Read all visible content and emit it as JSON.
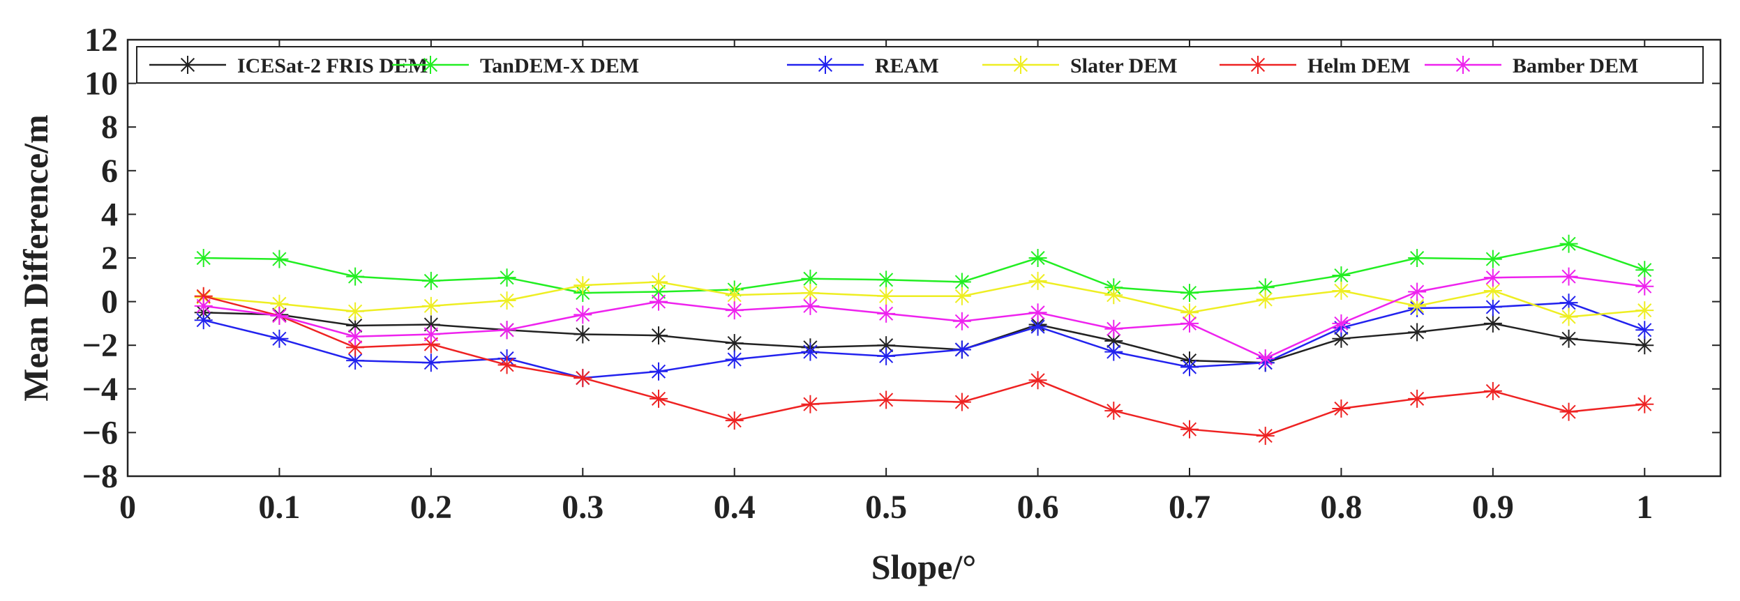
{
  "chart_data": {
    "type": "line",
    "title": "",
    "xlabel": "Slope/°",
    "ylabel": "Mean Difference/m",
    "xlim": [
      0,
      1.05
    ],
    "ylim": [
      -8,
      12
    ],
    "xticks": [
      0,
      0.1,
      0.2,
      0.3,
      0.4,
      0.5,
      0.6,
      0.7,
      0.8,
      0.9,
      1
    ],
    "xtick_labels": [
      "0",
      "0.1",
      "0.2",
      "0.3",
      "0.4",
      "0.5",
      "0.6",
      "0.7",
      "0.8",
      "0.9",
      "1"
    ],
    "yticks": [
      -8,
      -6,
      -4,
      -2,
      0,
      2,
      4,
      6,
      8,
      10,
      12
    ],
    "ytick_labels": [
      "−8",
      "−6",
      "−4",
      "−2",
      "0",
      "2",
      "4",
      "6",
      "8",
      "10",
      "12"
    ],
    "grid": false,
    "legend_position": "top",
    "x": [
      0.05,
      0.1,
      0.15,
      0.2,
      0.25,
      0.3,
      0.35,
      0.4,
      0.45,
      0.5,
      0.55,
      0.6,
      0.65,
      0.7,
      0.75,
      0.8,
      0.85,
      0.9,
      0.95,
      1.0
    ],
    "series": [
      {
        "name": "ICESat-2 FRIS DEM",
        "color": "#222222",
        "values": [
          -0.5,
          -0.6,
          -1.1,
          -1.05,
          -1.3,
          -1.5,
          -1.55,
          -1.9,
          -2.1,
          -2.0,
          -2.2,
          -1.05,
          -1.8,
          -2.7,
          -2.8,
          -1.7,
          -1.4,
          -1.0,
          -1.7,
          -2.0
        ]
      },
      {
        "name": "TanDEM-X DEM",
        "color": "#22ee22",
        "values": [
          2.0,
          1.95,
          1.15,
          0.95,
          1.1,
          0.4,
          0.45,
          0.55,
          1.05,
          1.0,
          0.9,
          2.0,
          0.65,
          0.4,
          0.65,
          1.2,
          2.0,
          1.95,
          2.65,
          1.45
        ]
      },
      {
        "name": "REAM",
        "color": "#2222ee",
        "values": [
          -0.85,
          -1.7,
          -2.7,
          -2.8,
          -2.6,
          -3.5,
          -3.2,
          -2.65,
          -2.3,
          -2.5,
          -2.2,
          -1.15,
          -2.3,
          -3.0,
          -2.8,
          -1.2,
          -0.3,
          -0.25,
          -0.05,
          -1.3
        ]
      },
      {
        "name": "Slater DEM",
        "color": "#eeee22",
        "values": [
          0.2,
          -0.1,
          -0.45,
          -0.2,
          0.05,
          0.75,
          0.9,
          0.3,
          0.4,
          0.25,
          0.25,
          0.95,
          0.3,
          -0.5,
          0.1,
          0.5,
          -0.2,
          0.5,
          -0.7,
          -0.4
        ]
      },
      {
        "name": "Helm DEM",
        "color": "#ee2222",
        "values": [
          0.25,
          -0.65,
          -2.1,
          -1.95,
          -2.9,
          -3.5,
          -4.45,
          -5.45,
          -4.7,
          -4.5,
          -4.6,
          -3.6,
          -5.0,
          -5.85,
          -6.15,
          -4.9,
          -4.45,
          -4.1,
          -5.05,
          -4.7
        ]
      },
      {
        "name": "Bamber DEM",
        "color": "#ee22ee",
        "values": [
          -0.2,
          -0.65,
          -1.6,
          -1.5,
          -1.3,
          -0.6,
          0.0,
          -0.4,
          -0.2,
          -0.55,
          -0.9,
          -0.5,
          -1.25,
          -1.0,
          -2.6,
          -1.0,
          0.45,
          1.1,
          1.15,
          0.7
        ]
      }
    ]
  }
}
